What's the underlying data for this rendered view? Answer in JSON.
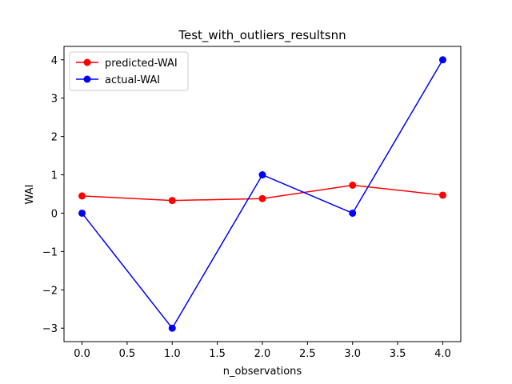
{
  "chart_data": {
    "type": "line",
    "title": "Test_with_outliers_resultsnn",
    "xlabel": "n_observations",
    "ylabel": "WAI",
    "x": [
      0,
      1,
      2,
      3,
      4
    ],
    "series": [
      {
        "name": "predicted-WAI",
        "color": "#ff0000",
        "marker": "circle",
        "values": [
          0.45,
          0.33,
          0.38,
          0.73,
          0.47
        ]
      },
      {
        "name": "actual-WAI",
        "color": "#0000ff",
        "marker": "circle",
        "values": [
          0,
          -3,
          1,
          0,
          4
        ]
      }
    ],
    "xlim": [
      -0.2,
      4.2
    ],
    "ylim": [
      -3.35,
      4.35
    ],
    "xticks": [
      0.0,
      0.5,
      1.0,
      1.5,
      2.0,
      2.5,
      3.0,
      3.5,
      4.0
    ],
    "xtick_labels": [
      "0.0",
      "0.5",
      "1.0",
      "1.5",
      "2.0",
      "2.5",
      "3.0",
      "3.5",
      "4.0"
    ],
    "yticks": [
      -3,
      -2,
      -1,
      0,
      1,
      2,
      3,
      4
    ],
    "ytick_labels": [
      "−3",
      "−2",
      "−1",
      "0",
      "1",
      "2",
      "3",
      "4"
    ],
    "grid": false,
    "legend_position": "upper-left"
  }
}
